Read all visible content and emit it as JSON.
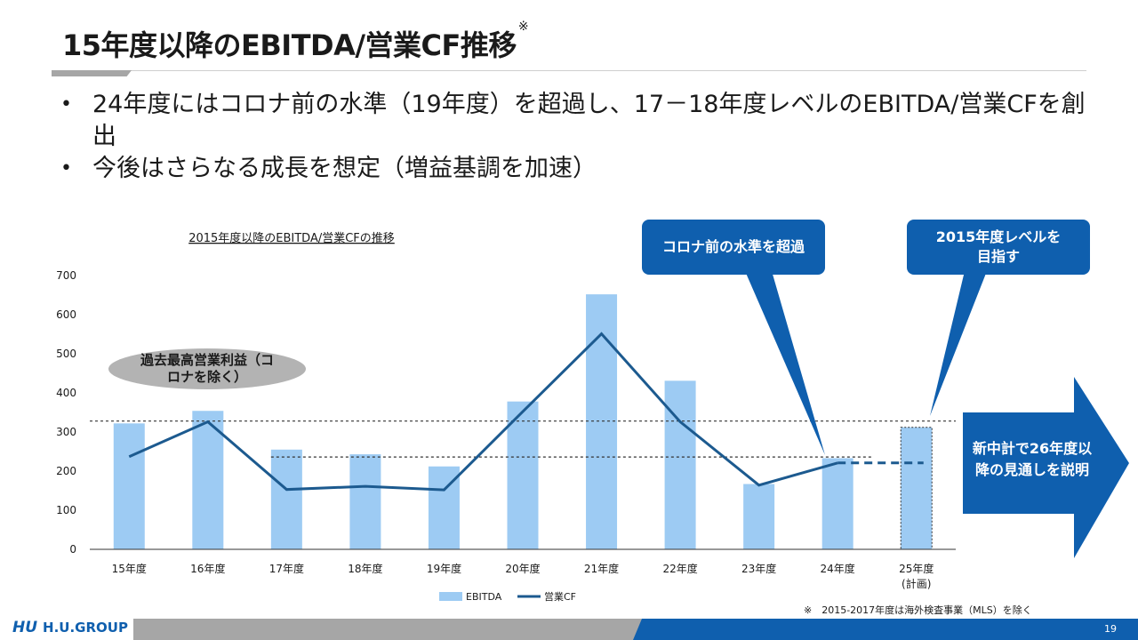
{
  "slide": {
    "title": "15年度以降のEBITDA/営業CF推移",
    "title_note": "※",
    "bullets": [
      "24年度にはコロナ前の水準（19年度）を超過し、17－18年度レベルのEBITDA/営業CFを創出",
      "今後はさらなる成長を想定（増益基調を加速）"
    ],
    "callout_covid": "コロナ前の水準を超過",
    "callout_2015": "2015年度レベルを目指す",
    "ellipse_label": "過去最高営業利益（コロナを除く）",
    "arrow_label": "新中計で26年度以降の見通しを説明",
    "footnote": "※　2015-2017年度は海外検査事業（MLS）を除く",
    "page_number": "19",
    "logo_mark": "HU",
    "logo_name": "H.U.GROUP"
  },
  "colors": {
    "bar": "#9dcbf3",
    "line": "#1c5a8f",
    "callout": "#0f5fae",
    "footer_gray": "#a6a6a6",
    "footer_blue": "#0f5fae"
  },
  "chart_data": {
    "type": "bar",
    "title": "2015年度以降のEBITDA/営業CFの推移",
    "categories": [
      "15年度",
      "16年度",
      "17年度",
      "18年度",
      "19年度",
      "20年度",
      "21年度",
      "22年度",
      "23年度",
      "24年度",
      "25年度(計画)"
    ],
    "ylim": [
      0,
      700
    ],
    "yticks": [
      0,
      100,
      200,
      300,
      400,
      500,
      600,
      700
    ],
    "series": [
      {
        "name": "EBITDA",
        "type": "bar",
        "values": [
          322,
          354,
          255,
          243,
          212,
          378,
          652,
          431,
          167,
          233,
          312
        ]
      },
      {
        "name": "営業CF",
        "type": "line",
        "values": [
          237,
          326,
          153,
          161,
          152,
          352,
          551,
          326,
          164,
          221,
          221
        ]
      }
    ],
    "reference_lines": [
      328,
      236
    ]
  }
}
